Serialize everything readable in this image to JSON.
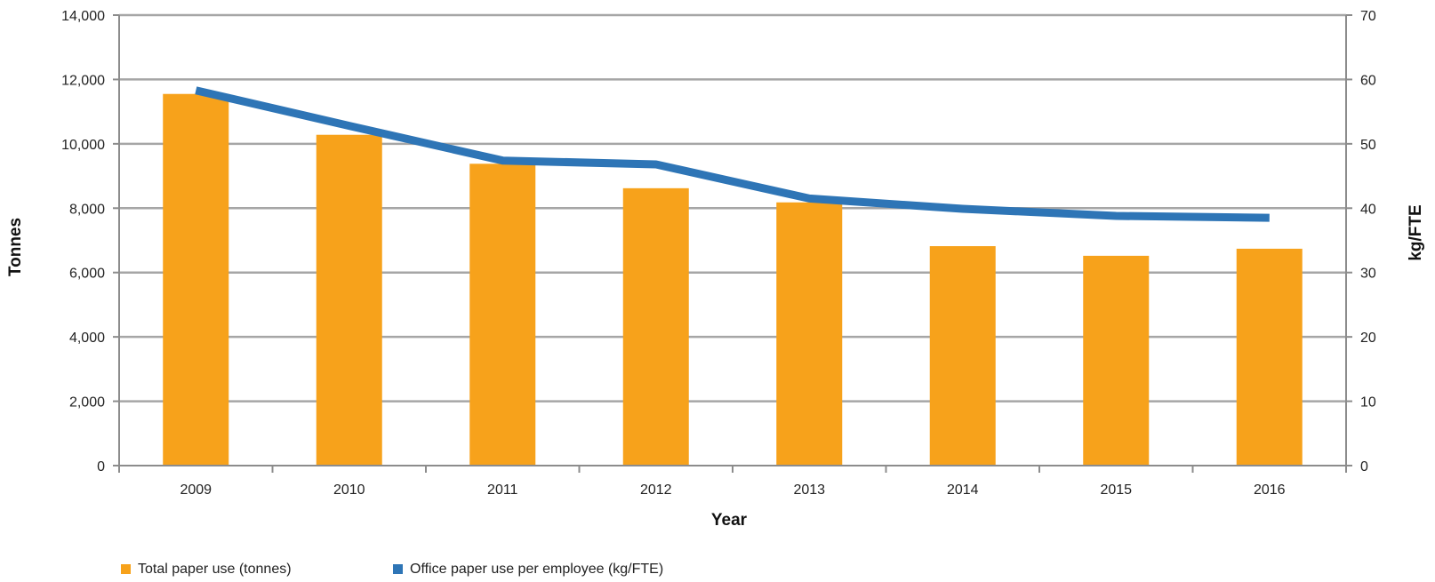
{
  "chart_data": {
    "type": "bar",
    "title": "",
    "xlabel": "Year",
    "ylabel": "Tonnes",
    "y2label": "kg/FTE",
    "categories": [
      "2009",
      "2010",
      "2011",
      "2012",
      "2013",
      "2014",
      "2015",
      "2016"
    ],
    "ylim": [
      0,
      14000
    ],
    "yticks": [
      0,
      2000,
      4000,
      6000,
      8000,
      10000,
      12000,
      14000
    ],
    "ytick_labels": [
      "0",
      "2,000",
      "4,000",
      "6,000",
      "8,000",
      "10,000",
      "12,000",
      "14,000"
    ],
    "y2lim": [
      0,
      70
    ],
    "y2ticks": [
      0,
      10,
      20,
      30,
      40,
      50,
      60,
      70
    ],
    "y2tick_labels": [
      "0",
      "10",
      "20",
      "30",
      "40",
      "50",
      "60",
      "70"
    ],
    "grid": true,
    "legend_position": "bottom-left",
    "series": [
      {
        "name": "Total paper use (tonnes)",
        "type": "bar",
        "axis": "left",
        "color": "#f7a21b",
        "values": [
          11550,
          10280,
          9380,
          8620,
          8180,
          6820,
          6520,
          6740
        ]
      },
      {
        "name": "Office paper use per employee (kg/FTE)",
        "type": "line",
        "axis": "right",
        "color": "#2e75b6",
        "values": [
          58.3,
          52.8,
          47.4,
          46.8,
          41.5,
          39.9,
          38.8,
          38.5
        ]
      }
    ]
  }
}
